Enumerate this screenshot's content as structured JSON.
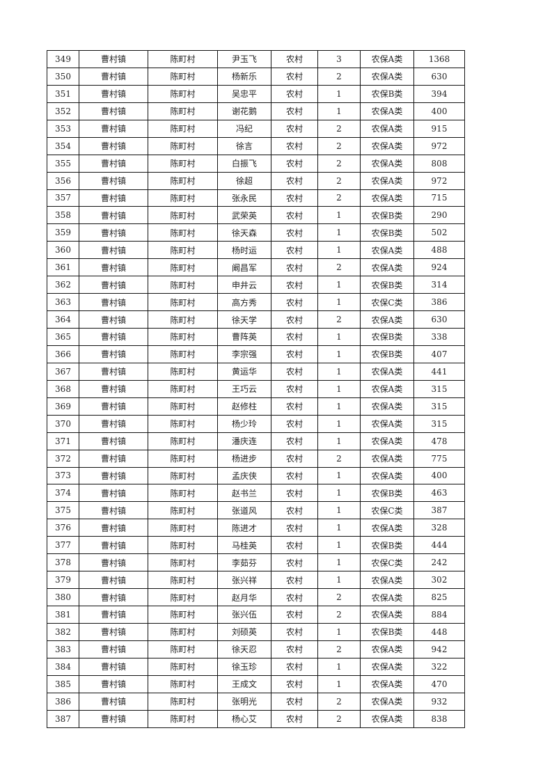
{
  "rows": [
    [
      "349",
      "曹村镇",
      "陈町村",
      "尹玉飞",
      "农村",
      "3",
      "农保A类",
      "1368"
    ],
    [
      "350",
      "曹村镇",
      "陈町村",
      "杨新乐",
      "农村",
      "2",
      "农保A类",
      "630"
    ],
    [
      "351",
      "曹村镇",
      "陈町村",
      "吴忠平",
      "农村",
      "1",
      "农保B类",
      "394"
    ],
    [
      "352",
      "曹村镇",
      "陈町村",
      "谢花鹅",
      "农村",
      "1",
      "农保A类",
      "400"
    ],
    [
      "353",
      "曹村镇",
      "陈町村",
      "冯纪",
      "农村",
      "2",
      "农保A类",
      "915"
    ],
    [
      "354",
      "曹村镇",
      "陈町村",
      "徐言",
      "农村",
      "2",
      "农保A类",
      "972"
    ],
    [
      "355",
      "曹村镇",
      "陈町村",
      "白振飞",
      "农村",
      "2",
      "农保A类",
      "808"
    ],
    [
      "356",
      "曹村镇",
      "陈町村",
      "徐超",
      "农村",
      "2",
      "农保A类",
      "972"
    ],
    [
      "357",
      "曹村镇",
      "陈町村",
      "张永民",
      "农村",
      "2",
      "农保A类",
      "715"
    ],
    [
      "358",
      "曹村镇",
      "陈町村",
      "武荣英",
      "农村",
      "1",
      "农保B类",
      "290"
    ],
    [
      "359",
      "曹村镇",
      "陈町村",
      "徐天森",
      "农村",
      "1",
      "农保B类",
      "502"
    ],
    [
      "360",
      "曹村镇",
      "陈町村",
      "杨时运",
      "农村",
      "1",
      "农保A类",
      "488"
    ],
    [
      "361",
      "曹村镇",
      "陈町村",
      "阚昌军",
      "农村",
      "2",
      "农保A类",
      "924"
    ],
    [
      "362",
      "曹村镇",
      "陈町村",
      "申井云",
      "农村",
      "1",
      "农保B类",
      "314"
    ],
    [
      "363",
      "曹村镇",
      "陈町村",
      "高方秀",
      "农村",
      "1",
      "农保C类",
      "386"
    ],
    [
      "364",
      "曹村镇",
      "陈町村",
      "徐天学",
      "农村",
      "2",
      "农保A类",
      "630"
    ],
    [
      "365",
      "曹村镇",
      "陈町村",
      "曹阵英",
      "农村",
      "1",
      "农保B类",
      "338"
    ],
    [
      "366",
      "曹村镇",
      "陈町村",
      "李宗强",
      "农村",
      "1",
      "农保B类",
      "407"
    ],
    [
      "367",
      "曹村镇",
      "陈町村",
      "黄运华",
      "农村",
      "1",
      "农保A类",
      "441"
    ],
    [
      "368",
      "曹村镇",
      "陈町村",
      "王巧云",
      "农村",
      "1",
      "农保A类",
      "315"
    ],
    [
      "369",
      "曹村镇",
      "陈町村",
      "赵修柱",
      "农村",
      "1",
      "农保A类",
      "315"
    ],
    [
      "370",
      "曹村镇",
      "陈町村",
      "杨少玲",
      "农村",
      "1",
      "农保A类",
      "315"
    ],
    [
      "371",
      "曹村镇",
      "陈町村",
      "潘庆连",
      "农村",
      "1",
      "农保A类",
      "478"
    ],
    [
      "372",
      "曹村镇",
      "陈町村",
      "杨进步",
      "农村",
      "2",
      "农保A类",
      "775"
    ],
    [
      "373",
      "曹村镇",
      "陈町村",
      "孟庆侠",
      "农村",
      "1",
      "农保A类",
      "400"
    ],
    [
      "374",
      "曹村镇",
      "陈町村",
      "赵书兰",
      "农村",
      "1",
      "农保B类",
      "463"
    ],
    [
      "375",
      "曹村镇",
      "陈町村",
      "张道风",
      "农村",
      "1",
      "农保C类",
      "387"
    ],
    [
      "376",
      "曹村镇",
      "陈町村",
      "陈进才",
      "农村",
      "1",
      "农保A类",
      "328"
    ],
    [
      "377",
      "曹村镇",
      "陈町村",
      "马桂英",
      "农村",
      "1",
      "农保B类",
      "444"
    ],
    [
      "378",
      "曹村镇",
      "陈町村",
      "李茹芬",
      "农村",
      "1",
      "农保C类",
      "242"
    ],
    [
      "379",
      "曹村镇",
      "陈町村",
      "张兴祥",
      "农村",
      "1",
      "农保A类",
      "302"
    ],
    [
      "380",
      "曹村镇",
      "陈町村",
      "赵月华",
      "农村",
      "2",
      "农保A类",
      "825"
    ],
    [
      "381",
      "曹村镇",
      "陈町村",
      "张兴伍",
      "农村",
      "2",
      "农保A类",
      "884"
    ],
    [
      "382",
      "曹村镇",
      "陈町村",
      "刘硕英",
      "农村",
      "1",
      "农保B类",
      "448"
    ],
    [
      "383",
      "曹村镇",
      "陈町村",
      "徐天忍",
      "农村",
      "2",
      "农保A类",
      "942"
    ],
    [
      "384",
      "曹村镇",
      "陈町村",
      "徐玉珍",
      "农村",
      "1",
      "农保A类",
      "322"
    ],
    [
      "385",
      "曹村镇",
      "陈町村",
      "王成文",
      "农村",
      "1",
      "农保A类",
      "470"
    ],
    [
      "386",
      "曹村镇",
      "陈町村",
      "张明光",
      "农村",
      "2",
      "农保A类",
      "932"
    ],
    [
      "387",
      "曹村镇",
      "陈町村",
      "杨心艾",
      "农村",
      "2",
      "农保A类",
      "838"
    ]
  ]
}
